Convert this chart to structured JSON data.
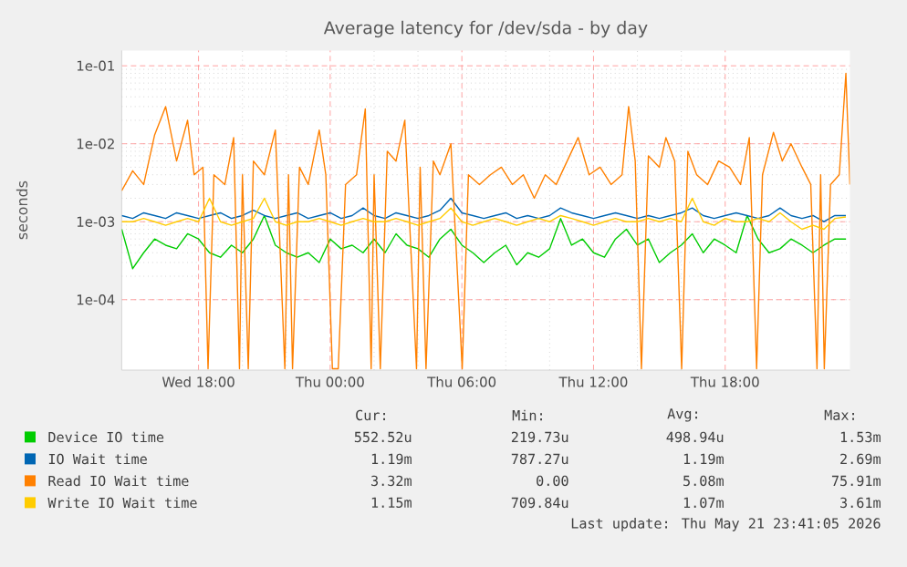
{
  "chart_data": {
    "type": "line",
    "title": "Average latency for /dev/sda - by day",
    "ylabel": "seconds",
    "x": [
      "2026-05-20T14:30",
      "2026-05-20T15:00",
      "2026-05-20T15:30",
      "2026-05-20T16:00",
      "2026-05-20T16:30",
      "2026-05-20T17:00",
      "2026-05-20T17:30",
      "2026-05-20T18:00",
      "2026-05-20T18:30",
      "2026-05-20T19:00",
      "2026-05-20T19:30",
      "2026-05-20T20:00",
      "2026-05-20T20:30",
      "2026-05-20T21:00",
      "2026-05-20T21:30",
      "2026-05-20T22:00",
      "2026-05-20T22:30",
      "2026-05-20T23:00",
      "2026-05-20T23:30",
      "2026-05-21T00:00",
      "2026-05-21T00:30",
      "2026-05-21T01:00",
      "2026-05-21T01:30",
      "2026-05-21T02:00",
      "2026-05-21T02:30",
      "2026-05-21T03:00",
      "2026-05-21T03:30",
      "2026-05-21T04:00",
      "2026-05-21T04:30",
      "2026-05-21T05:00",
      "2026-05-21T05:30",
      "2026-05-21T06:00",
      "2026-05-21T06:30",
      "2026-05-21T07:00",
      "2026-05-21T07:30",
      "2026-05-21T08:00",
      "2026-05-21T08:30",
      "2026-05-21T09:00",
      "2026-05-21T09:30",
      "2026-05-21T10:00",
      "2026-05-21T10:30",
      "2026-05-21T11:00",
      "2026-05-21T11:30",
      "2026-05-21T12:00",
      "2026-05-21T12:30",
      "2026-05-21T13:00",
      "2026-05-21T13:30",
      "2026-05-21T14:00",
      "2026-05-21T14:30",
      "2026-05-21T15:00",
      "2026-05-21T15:30",
      "2026-05-21T16:00",
      "2026-05-21T16:30",
      "2026-05-21T17:00",
      "2026-05-21T17:30",
      "2026-05-21T18:00",
      "2026-05-21T18:30",
      "2026-05-21T19:00",
      "2026-05-21T19:30",
      "2026-05-21T20:00",
      "2026-05-21T20:30",
      "2026-05-21T21:00",
      "2026-05-21T21:30",
      "2026-05-21T22:00",
      "2026-05-21T22:30",
      "2026-05-21T23:00",
      "2026-05-21T23:30"
    ],
    "series": [
      {
        "name": "Device IO time",
        "color": "#00cc00",
        "values": [
          0.0008,
          0.00025,
          0.0004,
          0.0006,
          0.0005,
          0.00045,
          0.0007,
          0.0006,
          0.0004,
          0.00035,
          0.0005,
          0.0004,
          0.0006,
          0.0012,
          0.0005,
          0.0004,
          0.00035,
          0.0004,
          0.0003,
          0.0006,
          0.00045,
          0.0005,
          0.0004,
          0.0006,
          0.0004,
          0.0007,
          0.0005,
          0.00045,
          0.00035,
          0.0006,
          0.0008,
          0.0005,
          0.0004,
          0.0003,
          0.0004,
          0.0005,
          0.00028,
          0.0004,
          0.00035,
          0.00045,
          0.0011,
          0.0005,
          0.0006,
          0.0004,
          0.00035,
          0.0006,
          0.0008,
          0.0005,
          0.0006,
          0.0003,
          0.0004,
          0.0005,
          0.0007,
          0.0004,
          0.0006,
          0.0005,
          0.0004,
          0.0012,
          0.0006,
          0.0004,
          0.00045,
          0.0006,
          0.0005,
          0.0004,
          0.0005,
          0.0006,
          0.0006
        ]
      },
      {
        "name": "IO Wait time",
        "color": "#0066b3",
        "values": [
          0.0012,
          0.0011,
          0.0013,
          0.0012,
          0.0011,
          0.0013,
          0.0012,
          0.0011,
          0.0012,
          0.0013,
          0.0011,
          0.0012,
          0.0014,
          0.0012,
          0.0011,
          0.0012,
          0.0013,
          0.0011,
          0.0012,
          0.0013,
          0.0011,
          0.0012,
          0.0015,
          0.0012,
          0.0011,
          0.0013,
          0.0012,
          0.0011,
          0.0012,
          0.0014,
          0.002,
          0.0013,
          0.0012,
          0.0011,
          0.0012,
          0.0013,
          0.0011,
          0.0012,
          0.0011,
          0.0012,
          0.0015,
          0.0013,
          0.0012,
          0.0011,
          0.0012,
          0.0013,
          0.0012,
          0.0011,
          0.0012,
          0.0011,
          0.0012,
          0.0013,
          0.0015,
          0.0012,
          0.0011,
          0.0012,
          0.0013,
          0.0012,
          0.0011,
          0.0012,
          0.0015,
          0.0012,
          0.0011,
          0.0012,
          0.001,
          0.0012,
          0.0012
        ]
      },
      {
        "name": "Read IO Wait time",
        "color": "#ff8000",
        "x": [
          "2026-05-20T14:30",
          "2026-05-20T15:00",
          "2026-05-20T15:30",
          "2026-05-20T16:00",
          "2026-05-20T16:30",
          "2026-05-20T17:00",
          "2026-05-20T17:30",
          "2026-05-20T17:48",
          "2026-05-20T18:12",
          "2026-05-20T18:26",
          "2026-05-20T18:42",
          "2026-05-20T19:12",
          "2026-05-20T19:36",
          "2026-05-20T19:52",
          "2026-05-20T20:00",
          "2026-05-20T20:16",
          "2026-05-20T20:30",
          "2026-05-20T21:00",
          "2026-05-20T21:30",
          "2026-05-20T21:56",
          "2026-05-20T22:06",
          "2026-05-20T22:17",
          "2026-05-20T22:36",
          "2026-05-20T23:00",
          "2026-05-20T23:30",
          "2026-05-20T23:48",
          "2026-05-21T00:06",
          "2026-05-21T00:22",
          "2026-05-21T00:42",
          "2026-05-21T01:12",
          "2026-05-21T01:36",
          "2026-05-21T01:52",
          "2026-05-21T02:00",
          "2026-05-21T02:17",
          "2026-05-21T02:36",
          "2026-05-21T03:00",
          "2026-05-21T03:24",
          "2026-05-21T03:56",
          "2026-05-21T04:06",
          "2026-05-21T04:22",
          "2026-05-21T04:42",
          "2026-05-21T05:00",
          "2026-05-21T05:30",
          "2026-05-21T06:01",
          "2026-05-21T06:18",
          "2026-05-21T06:48",
          "2026-05-21T07:18",
          "2026-05-21T07:48",
          "2026-05-21T08:18",
          "2026-05-21T08:48",
          "2026-05-21T09:18",
          "2026-05-21T09:48",
          "2026-05-21T10:18",
          "2026-05-21T10:48",
          "2026-05-21T11:18",
          "2026-05-21T11:48",
          "2026-05-21T12:18",
          "2026-05-21T12:48",
          "2026-05-21T13:18",
          "2026-05-21T13:36",
          "2026-05-21T13:54",
          "2026-05-21T14:11",
          "2026-05-21T14:30",
          "2026-05-21T15:00",
          "2026-05-21T15:18",
          "2026-05-21T15:42",
          "2026-05-21T16:01",
          "2026-05-21T16:18",
          "2026-05-21T16:42",
          "2026-05-21T17:12",
          "2026-05-21T17:42",
          "2026-05-21T18:12",
          "2026-05-21T18:42",
          "2026-05-21T19:06",
          "2026-05-21T19:26",
          "2026-05-21T19:42",
          "2026-05-21T20:12",
          "2026-05-21T20:36",
          "2026-05-21T21:00",
          "2026-05-21T21:30",
          "2026-05-21T21:54",
          "2026-05-21T22:11",
          "2026-05-21T22:21",
          "2026-05-21T22:31",
          "2026-05-21T22:48",
          "2026-05-21T23:12",
          "2026-05-21T23:30",
          "2026-05-21T23:41"
        ],
        "values": [
          0.0025,
          0.0045,
          0.003,
          0.013,
          0.03,
          0.006,
          0.02,
          0.004,
          0.005,
          1.3e-05,
          0.004,
          0.003,
          0.012,
          1.3e-05,
          0.004,
          1.3e-05,
          0.006,
          0.004,
          0.015,
          1.3e-05,
          0.004,
          1.3e-05,
          0.005,
          0.003,
          0.015,
          0.004,
          1.3e-05,
          1.3e-05,
          0.003,
          0.004,
          0.028,
          1.3e-05,
          0.004,
          1.3e-05,
          0.008,
          0.006,
          0.02,
          1.3e-05,
          0.005,
          1.3e-05,
          0.006,
          0.004,
          0.01,
          1.3e-05,
          0.004,
          0.003,
          0.004,
          0.005,
          0.003,
          0.004,
          0.002,
          0.004,
          0.003,
          0.006,
          0.012,
          0.004,
          0.005,
          0.003,
          0.004,
          0.03,
          0.006,
          1.3e-05,
          0.007,
          0.005,
          0.012,
          0.006,
          1.3e-05,
          0.008,
          0.004,
          0.003,
          0.006,
          0.005,
          0.003,
          0.012,
          1.3e-05,
          0.004,
          0.014,
          0.006,
          0.01,
          0.005,
          0.003,
          1.3e-05,
          0.004,
          1.3e-05,
          0.003,
          0.004,
          0.08,
          0.003
        ]
      },
      {
        "name": "Write IO Wait time",
        "color": "#ffcc00",
        "values": [
          0.001,
          0.001,
          0.0011,
          0.001,
          0.0009,
          0.001,
          0.0011,
          0.001,
          0.002,
          0.001,
          0.0009,
          0.001,
          0.0011,
          0.002,
          0.001,
          0.0009,
          0.001,
          0.001,
          0.0011,
          0.001,
          0.0009,
          0.001,
          0.0011,
          0.001,
          0.001,
          0.0011,
          0.001,
          0.0009,
          0.001,
          0.0011,
          0.0015,
          0.001,
          0.0009,
          0.001,
          0.0011,
          0.001,
          0.0009,
          0.001,
          0.0011,
          0.001,
          0.0012,
          0.0011,
          0.001,
          0.0009,
          0.001,
          0.0011,
          0.001,
          0.001,
          0.0011,
          0.001,
          0.0011,
          0.001,
          0.002,
          0.001,
          0.0009,
          0.0011,
          0.001,
          0.001,
          0.0011,
          0.001,
          0.0013,
          0.001,
          0.0008,
          0.0009,
          0.0008,
          0.0011,
          0.00115
        ]
      }
    ],
    "xlim": [
      "2026-05-20T14:30",
      "2026-05-21T23:41"
    ],
    "ylim": [
      1.25e-05,
      0.157
    ],
    "log": true,
    "grid": true,
    "legend": "bottom",
    "marker": "none",
    "xticks": [
      {
        "value": "2026-05-20T18:00",
        "label": "Wed 18:00"
      },
      {
        "value": "2026-05-21T00:00",
        "label": "Thu 00:00"
      },
      {
        "value": "2026-05-21T06:00",
        "label": "Thu 06:00"
      },
      {
        "value": "2026-05-21T12:00",
        "label": "Thu 12:00"
      },
      {
        "value": "2026-05-21T18:00",
        "label": "Thu 18:00"
      }
    ],
    "yticks": [
      {
        "value": 0.0001,
        "label": "1e-04"
      },
      {
        "value": 0.001,
        "label": "1e-03"
      },
      {
        "value": 0.01,
        "label": "1e-02"
      },
      {
        "value": 0.1,
        "label": "1e-01"
      }
    ],
    "annotations": [
      "Cur:",
      "Min:",
      "Avg:",
      "Max:",
      "552.52u",
      "219.73u",
      "498.94u",
      "1.53m",
      "1.19m",
      "787.27u",
      "1.19m",
      "2.69m",
      "3.32m",
      "0.00",
      "5.08m",
      "75.91m",
      "1.15m",
      "709.84u",
      "1.07m",
      "3.61m",
      "Last update: Thu May 21 23:41:05 2026"
    ]
  }
}
